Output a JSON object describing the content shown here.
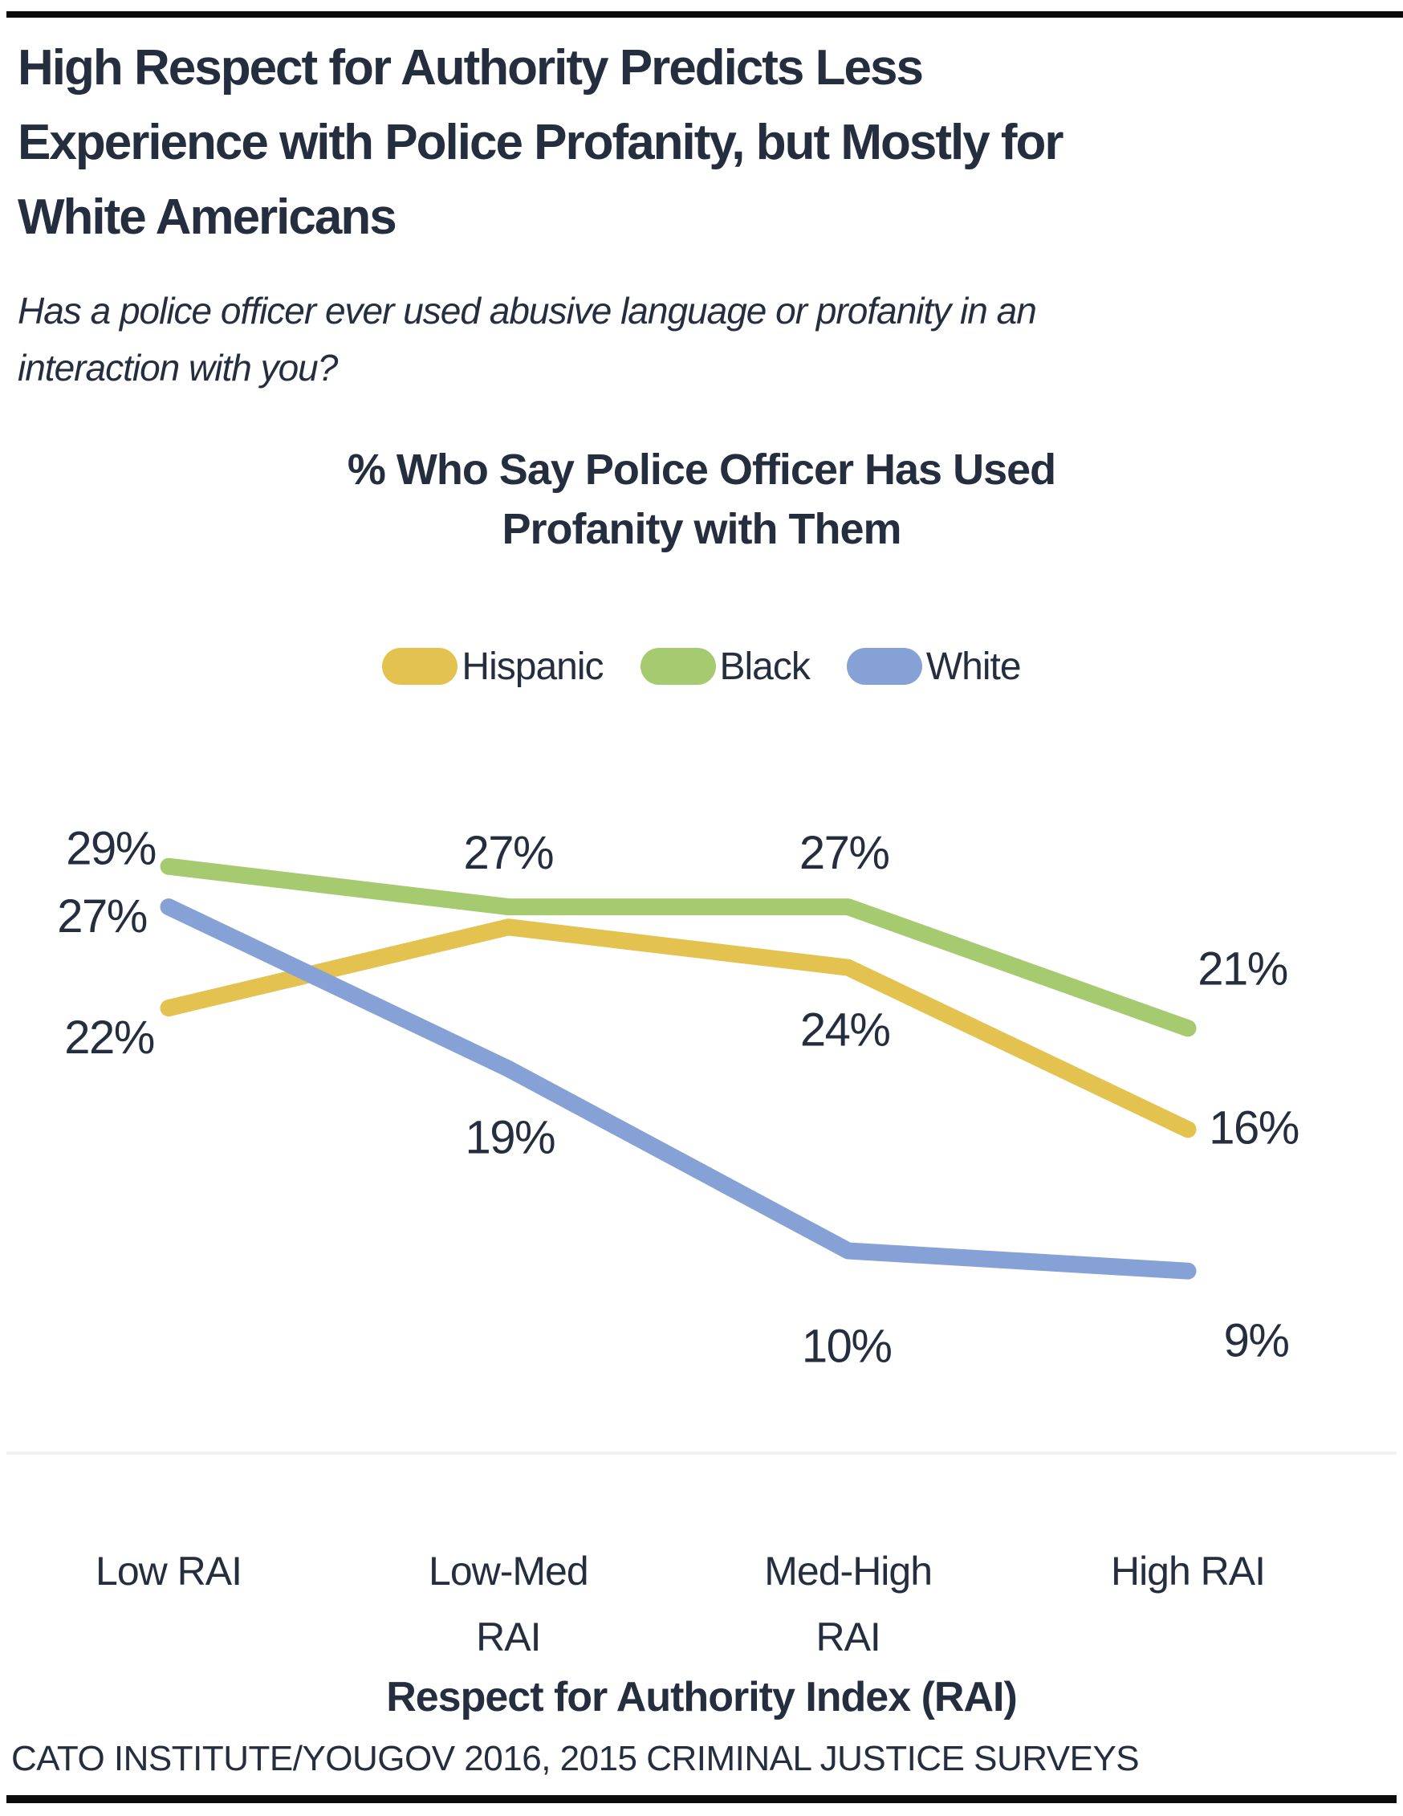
{
  "page": {
    "title_lines": [
      "High Respect for Authority Predicts Less",
      "Experience with Police Profanity, but Mostly for",
      "White Americans"
    ],
    "subtitle_lines": [
      "Has a police officer ever used abusive language or profanity in an",
      "interaction with you?"
    ],
    "source": "CATO INSTITUTE/YOUGOV 2016, 2015 CRIMINAL JUSTICE SURVEYS"
  },
  "chart_data": {
    "type": "line",
    "title_lines": [
      "% Who Say Police Officer Has Used",
      "Profanity with Them"
    ],
    "categories": [
      "Low RAI",
      "Low-Med RAI",
      "Med-High RAI",
      "High RAI"
    ],
    "category_label_lines": [
      [
        "Low RAI"
      ],
      [
        "Low-Med",
        "RAI"
      ],
      [
        "Med-High",
        "RAI"
      ],
      [
        "High RAI"
      ]
    ],
    "xlabel": "Respect for Authority Index (RAI)",
    "ylabel": "",
    "ylim": [
      0,
      33
    ],
    "grid": false,
    "legend_position": "top",
    "series": [
      {
        "name": "Hispanic",
        "color": "#E3C24F",
        "values": [
          22,
          26,
          24,
          16
        ],
        "labels": [
          "22%",
          "",
          "24%",
          "16%"
        ]
      },
      {
        "name": "Black",
        "color": "#A6CA6F",
        "values": [
          29,
          27,
          27,
          21
        ],
        "labels": [
          "29%",
          "27%",
          "27%",
          "21%"
        ]
      },
      {
        "name": "White",
        "color": "#85A1D6",
        "values": [
          27,
          19,
          10,
          9
        ],
        "labels": [
          "27%",
          "19%",
          "10%",
          "9%"
        ]
      }
    ]
  },
  "colors": {
    "text": "#252E3F",
    "rule": "#0C0C0C",
    "baseline": "#F1F1F1",
    "background": "#FFFFFF"
  }
}
